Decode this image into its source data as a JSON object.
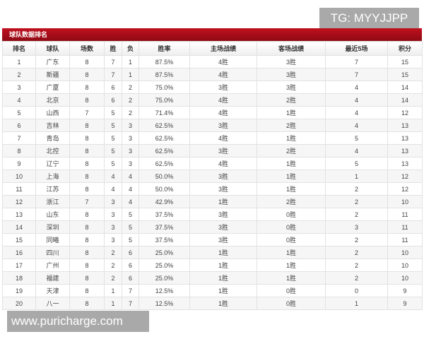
{
  "watermarks": {
    "top": "TG: MYYJJPP",
    "bottom": "www.puricharge.com"
  },
  "title": "球队数据排名",
  "columns": [
    "排名",
    "球队",
    "场数",
    "胜",
    "负",
    "胜率",
    "主场战绩",
    "客场战绩",
    "最近5场",
    "积分"
  ],
  "rows": [
    [
      "1",
      "广东",
      "8",
      "7",
      "1",
      "87.5%",
      "4胜",
      "3胜",
      "7",
      "15"
    ],
    [
      "2",
      "新疆",
      "8",
      "7",
      "1",
      "87.5%",
      "4胜",
      "3胜",
      "7",
      "15"
    ],
    [
      "3",
      "广厦",
      "8",
      "6",
      "2",
      "75.0%",
      "3胜",
      "3胜",
      "4",
      "14"
    ],
    [
      "4",
      "北京",
      "8",
      "6",
      "2",
      "75.0%",
      "4胜",
      "2胜",
      "4",
      "14"
    ],
    [
      "5",
      "山西",
      "7",
      "5",
      "2",
      "71.4%",
      "4胜",
      "1胜",
      "4",
      "12"
    ],
    [
      "6",
      "吉林",
      "8",
      "5",
      "3",
      "62.5%",
      "3胜",
      "2胜",
      "4",
      "13"
    ],
    [
      "7",
      "青岛",
      "8",
      "5",
      "3",
      "62.5%",
      "4胜",
      "1胜",
      "5",
      "13"
    ],
    [
      "8",
      "北控",
      "8",
      "5",
      "3",
      "62.5%",
      "3胜",
      "2胜",
      "4",
      "13"
    ],
    [
      "9",
      "辽宁",
      "8",
      "5",
      "3",
      "62.5%",
      "4胜",
      "1胜",
      "5",
      "13"
    ],
    [
      "10",
      "上海",
      "8",
      "4",
      "4",
      "50.0%",
      "3胜",
      "1胜",
      "1",
      "12"
    ],
    [
      "11",
      "江苏",
      "8",
      "4",
      "4",
      "50.0%",
      "3胜",
      "1胜",
      "2",
      "12"
    ],
    [
      "12",
      "浙江",
      "7",
      "3",
      "4",
      "42.9%",
      "1胜",
      "2胜",
      "2",
      "10"
    ],
    [
      "13",
      "山东",
      "8",
      "3",
      "5",
      "37.5%",
      "3胜",
      "0胜",
      "2",
      "11"
    ],
    [
      "14",
      "深圳",
      "8",
      "3",
      "5",
      "37.5%",
      "3胜",
      "0胜",
      "3",
      "11"
    ],
    [
      "15",
      "同曦",
      "8",
      "3",
      "5",
      "37.5%",
      "3胜",
      "0胜",
      "2",
      "11"
    ],
    [
      "16",
      "四川",
      "8",
      "2",
      "6",
      "25.0%",
      "1胜",
      "1胜",
      "2",
      "10"
    ],
    [
      "17",
      "广州",
      "8",
      "2",
      "6",
      "25.0%",
      "1胜",
      "1胜",
      "2",
      "10"
    ],
    [
      "18",
      "福建",
      "8",
      "2",
      "6",
      "25.0%",
      "1胜",
      "1胜",
      "2",
      "10"
    ],
    [
      "19",
      "天津",
      "8",
      "1",
      "7",
      "12.5%",
      "1胜",
      "0胜",
      "0",
      "9"
    ],
    [
      "20",
      "八一",
      "8",
      "1",
      "7",
      "12.5%",
      "1胜",
      "0胜",
      "1",
      "9"
    ]
  ],
  "colors": {
    "header_bar": "#b00e1b",
    "watermark_bg": "#a9a9a9"
  }
}
